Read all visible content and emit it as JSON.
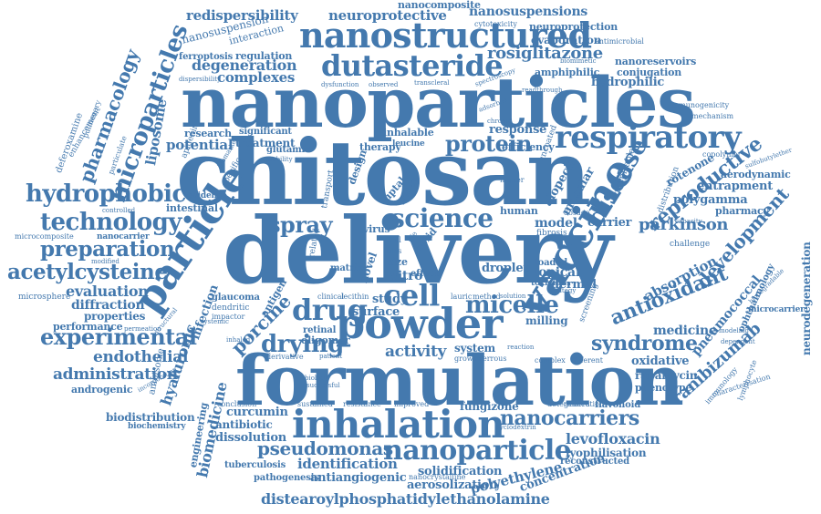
{
  "theme": {
    "word_color": "#4479ae",
    "background": "#ffffff"
  },
  "words": {
    "nanoparticles": "nanoparticles",
    "chitosan": "chitosan",
    "delivery": "delivery",
    "formulation": "formulation",
    "inhalation": "inhalation",
    "powder": "powder",
    "vaccine": "vaccine",
    "nanostructured": "nanostructured",
    "dutasteride": "dutasteride",
    "particle": "particle",
    "microparticles": "microparticles",
    "nanoparticle": "nanoparticle",
    "respiratory": "respiratory",
    "science": "science",
    "cell": "cell",
    "drug": "drug",
    "disease": "disease",
    "micelle": "micelle",
    "protein": "protein",
    "spray": "spray",
    "drying": "drying",
    "technology": "technology",
    "hydrophobic": "hydrophobic",
    "preparation": "preparation",
    "acetylcysteine": "acetylcysteine",
    "experimental": "experimental",
    "nanocarriers": "nanocarriers",
    "syndrome": "syndrome",
    "antioxidant": "antioxidant",
    "reproductive": "reproductive",
    "development": "development",
    "ranibizumab": "ranibizumab",
    "pseudomonas": "pseudomonas",
    "distearoylphosphatidylethanolamine": "distearoylphosphatidylethanolamine",
    "rosiglitazone": "rosiglitazone",
    "redispersibility": "redispersibility",
    "neuroprotective": "neuroprotective",
    "nanosuspensions": "nanosuspensions",
    "nanocomposite": "nanocomposite",
    "cytotoxicity": "cytotoxicity",
    "neuroprotection": "neuroprotection",
    "evaporation": "evaporation",
    "antimicrobial": "antimicrobial",
    "conjugation": "conjugation",
    "nanoreservoirs": "nanoreservoirs",
    "hydrophilic": "hydrophilic",
    "amphiphilic": "amphiphilic",
    "biomimetic": "biomimetic",
    "nanosuspension": "nanosuspension",
    "interaction": "interaction",
    "ferroptosis": "ferroptosis",
    "regulation": "regulation",
    "degeneration": "degeneration",
    "complexes": "complexes",
    "dispersibility": "dispersibility",
    "dysfunction": "dysfunction",
    "observed": "observed",
    "transcleral": "transcleral",
    "spectroscopy": "spectroscopy",
    "readthrough": "readthrough",
    "pharmacology": "pharmacology",
    "deferoxamine": "deferoxamine",
    "enhancement": "enhancement",
    "pulmonary": "pulmonary",
    "liposome": "liposome",
    "particulate": "particulate",
    "research": "research",
    "significant": "significant",
    "treatment": "treatment",
    "glutamic": "glutamic",
    "inhalable": "inhalable",
    "leucine": "leucine",
    "therapy": "therapy",
    "response": "response",
    "efficiency": "efficiency",
    "chronic": "chronic",
    "adsorbed": "adsorbed",
    "immunogenicity": "immunogenicity",
    "mechanism": "mechanism",
    "aerodynamic": "aerodynamic",
    "entrapment": "entrapment",
    "polygamma": "polygamma",
    "pharmacy": "pharmacy",
    "copolymer": "copolymer",
    "sulfobutylether": "sulfobutylether",
    "rotenone": "rotenone",
    "parkinson": "parkinson",
    "model": "model",
    "carrier": "carrier",
    "potential": "potential",
    "apigenin": "apigenin",
    "evidence": "evidence",
    "intestinal": "intestinal",
    "controlled": "controlled",
    "biomarker": "biomarker",
    "microcomposite": "microcomposite",
    "nanocarrier": "nanocarrier",
    "evaluation": "evaluation",
    "diffraction": "diffraction",
    "properties": "properties",
    "performance": "performance",
    "administration": "administration",
    "endothelial": "endothelial",
    "androgenic": "androgenic",
    "microsphere": "microsphere",
    "ambisome": "ambisome",
    "hyaluronic": "hyaluronic",
    "biomedicine": "biomedicine",
    "infection": "infection",
    "porcine": "porcine",
    "glaucoma": "glaucoma",
    "dendritic": "dendritic",
    "impactor": "impactor",
    "retinal": "retinal",
    "antigen": "antigen",
    "oligomer": "oligomer",
    "derivative": "derivative",
    "surface": "surface",
    "study": "study",
    "activity": "activity",
    "vitro": "vitro",
    "size": "size",
    "nlcs": "nlcs",
    "novel": "novel",
    "virus": "virus",
    "matrix": "matrix",
    "clinical": "clinical",
    "lecithin": "lecithin",
    "droplet": "droplet",
    "topical": "topical",
    "dermal": "dermal",
    "toxicity": "toxicity",
    "loaded": "loaded",
    "milling": "milling",
    "system": "system",
    "growth": "growth",
    "ferrous": "ferrous",
    "complex": "complex",
    "different": "different",
    "human": "human",
    "dosage": "dosage",
    "alopecia": "alopecia",
    "macular": "macular",
    "uncoated": "uncoated",
    "absorption": "absorption",
    "pneumococcal": "pneumococcal",
    "ophthalmology": "ophthalmology",
    "medicine": "medicine",
    "oxidative": "oxidative",
    "rapamycin": "rapamycin",
    "phenotype": "phenotype",
    "immunology": "immunology",
    "characterisation": "characterisation",
    "biodegradable": "biodegradable",
    "microcarrier": "microcarrier",
    "neurodegeneration": "neurodegeneration",
    "challenge": "challenge",
    "capacity": "capacity",
    "distribution": "distribution",
    "respirable": "respirable",
    "lymphocyte": "lymphocyte",
    "levofloxacin": "levofloxacin",
    "lyophilisation": "lyophilisation",
    "reconstructed": "reconstructed",
    "flavonoid": "flavonoid",
    "determined": "determined",
    "generation": "generation",
    "fungizone": "fungizone",
    "concentration": "concentration",
    "polyethylene": "polyethylene",
    "solidification": "solidification",
    "aerosolization": "aerosolization",
    "nanocrystalline": "nanocrystalline",
    "identification": "identification",
    "antiangiogenic": "antiangiogenic",
    "pathogenesis": "pathogenesis",
    "tuberculosis": "tuberculosis",
    "dissolution": "dissolution",
    "antibiotic": "antibiotic",
    "curcumin": "curcumin",
    "engineering": "engineering",
    "biodistribution": "biodistribution",
    "biochemistry": "biochemistry",
    "conclusion": "conclusion",
    "sustained": "sustained",
    "resistance": "resistance",
    "improved": "improved",
    "cyclodextrin": "cyclodextrin",
    "successful": "successful",
    "patient": "patient",
    "biology": "biology",
    "incorporation": "incorporation",
    "structural": "structural",
    "permeation": "permeation",
    "modified": "modified",
    "systemic": "systemic",
    "inhaled": "inhaled",
    "fibrosis": "fibrosis",
    "method": "method",
    "lauric": "lauric",
    "solution": "solution",
    "reaction": "reaction",
    "screening": "screening",
    "strategy": "strategy",
    "fraction": "fraction",
    "design": "design",
    "uptake": "uptake",
    "water": "water",
    "effect": "effect",
    "solid": "solid",
    "oral": "oral",
    "life": "life",
    "higher": "higher",
    "stability": "stability",
    "specific": "specific",
    "transport": "transport",
    "related": "related",
    "modeling": "modeling",
    "dependent": "dependent"
  }
}
